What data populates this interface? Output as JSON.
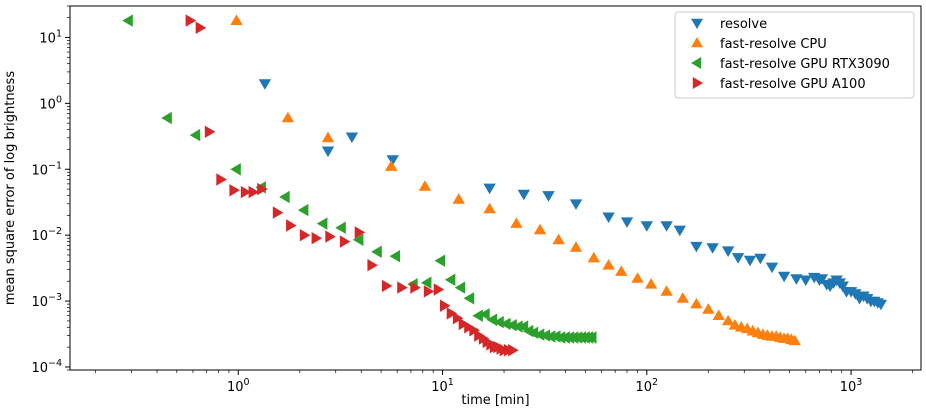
{
  "chart_data": {
    "type": "scatter",
    "title": "",
    "xlabel": "time [min]",
    "ylabel": "mean square error of log brightness",
    "xscale": "log",
    "yscale": "log",
    "xlim": [
      0.15,
      2200
    ],
    "ylim": [
      9e-05,
      30
    ],
    "x_ticks": [
      1,
      10,
      100,
      1000
    ],
    "x_tick_labels": [
      "10^0",
      "10^1",
      "10^2",
      "10^3"
    ],
    "y_ticks": [
      0.0001,
      0.001,
      0.01,
      0.1,
      1,
      10
    ],
    "y_tick_labels": [
      "10^-4",
      "10^-3",
      "10^-2",
      "10^-1",
      "10^0",
      "10^1"
    ],
    "grid": false,
    "legend_position": "top-right",
    "series": [
      {
        "name": "resolve",
        "color": "#1f77b4",
        "marker": "triangle-down",
        "x": [
          1.35,
          2.75,
          3.6,
          5.7,
          17,
          25,
          33,
          45,
          65,
          80,
          100,
          125,
          145,
          175,
          210,
          250,
          280,
          320,
          360,
          410,
          470,
          540,
          600,
          660,
          700,
          720,
          760,
          790,
          820,
          850,
          880,
          910,
          950,
          1000,
          1050,
          1100,
          1150,
          1200,
          1250,
          1300,
          1350,
          1400
        ],
        "y": [
          2.0,
          0.19,
          0.31,
          0.14,
          0.052,
          0.042,
          0.04,
          0.03,
          0.019,
          0.016,
          0.014,
          0.014,
          0.012,
          0.0068,
          0.0065,
          0.0058,
          0.0046,
          0.0042,
          0.0045,
          0.0033,
          0.0024,
          0.0022,
          0.0021,
          0.0023,
          0.0021,
          0.0022,
          0.0018,
          0.0017,
          0.0019,
          0.0021,
          0.0019,
          0.0017,
          0.0014,
          0.0014,
          0.0013,
          0.0011,
          0.0012,
          0.0011,
          0.001,
          0.001,
          0.00095,
          0.0009
        ]
      },
      {
        "name": "fast-resolve CPU",
        "color": "#ff7f0e",
        "marker": "triangle-up",
        "x": [
          0.98,
          1.75,
          2.75,
          5.6,
          8.2,
          12,
          17,
          23,
          30,
          37,
          45,
          55,
          65,
          75,
          90,
          105,
          125,
          150,
          175,
          200,
          225,
          250,
          270,
          290,
          310,
          330,
          350,
          370,
          390,
          410,
          430,
          450,
          470,
          490,
          510,
          530
        ],
        "y": [
          18,
          0.6,
          0.3,
          0.11,
          0.055,
          0.035,
          0.025,
          0.015,
          0.012,
          0.0085,
          0.0065,
          0.0045,
          0.0035,
          0.0028,
          0.0022,
          0.0018,
          0.0014,
          0.0011,
          0.0009,
          0.00075,
          0.0006,
          0.0005,
          0.00043,
          0.0004,
          0.00038,
          0.00035,
          0.00033,
          0.00031,
          0.0003,
          0.00029,
          0.00029,
          0.00028,
          0.00027,
          0.00027,
          0.00026,
          0.00025
        ]
      },
      {
        "name": "fast-resolve GPU RTX3090",
        "color": "#2ca02c",
        "marker": "triangle-left",
        "x": [
          0.29,
          0.45,
          0.62,
          0.98,
          1.3,
          1.7,
          2.1,
          2.6,
          3.2,
          3.9,
          4.8,
          5.9,
          7.2,
          8.4,
          9.8,
          11,
          12.3,
          13.6,
          15,
          16.2,
          17.6,
          19,
          20.5,
          22,
          23.5,
          25,
          26.5,
          28,
          30,
          32,
          34,
          36,
          38,
          40,
          42,
          44,
          46,
          48,
          50,
          52,
          54
        ],
        "y": [
          18,
          0.6,
          0.33,
          0.1,
          0.053,
          0.038,
          0.024,
          0.015,
          0.013,
          0.0085,
          0.0056,
          0.0048,
          0.0018,
          0.0019,
          0.0041,
          0.0021,
          0.0016,
          0.0011,
          0.0006,
          0.00063,
          0.00052,
          0.00048,
          0.00045,
          0.00043,
          0.00041,
          0.00041,
          0.00035,
          0.00033,
          0.00031,
          0.0003,
          0.00029,
          0.00029,
          0.00028,
          0.00028,
          0.00028,
          0.00028,
          0.00028,
          0.00028,
          0.00028,
          0.00028,
          0.00028
        ]
      },
      {
        "name": "fast-resolve GPU A100",
        "color": "#d62728",
        "marker": "triangle-right",
        "x": [
          0.58,
          0.65,
          0.72,
          0.82,
          0.95,
          1.08,
          1.18,
          1.3,
          1.55,
          1.8,
          2.1,
          2.4,
          2.8,
          3.3,
          3.9,
          4.5,
          5.3,
          6.3,
          7.3,
          8.5,
          9.5,
          10.2,
          11,
          11.8,
          12.6,
          13.4,
          14.2,
          15,
          15.8,
          16.5,
          17.2,
          17.9,
          18.6,
          19.3,
          20,
          21,
          22
        ],
        "y": [
          18,
          14,
          0.37,
          0.07,
          0.048,
          0.045,
          0.045,
          0.05,
          0.022,
          0.014,
          0.01,
          0.009,
          0.0095,
          0.008,
          0.011,
          0.0035,
          0.0017,
          0.0016,
          0.0016,
          0.0014,
          0.0015,
          0.00085,
          0.00065,
          0.00055,
          0.00045,
          0.0004,
          0.00036,
          0.0003,
          0.00027,
          0.00024,
          0.00022,
          0.0002,
          0.0002,
          0.00019,
          0.00018,
          0.00018,
          0.00018
        ]
      }
    ]
  }
}
